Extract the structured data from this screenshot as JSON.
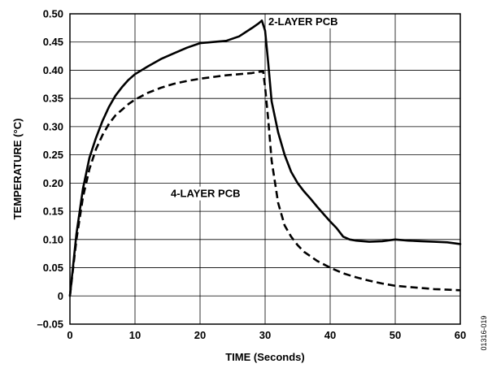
{
  "chart_data": {
    "type": "line",
    "title": "",
    "xlabel": "TIME (Seconds)",
    "ylabel": "TEMPERATURE (°C)",
    "xlim": [
      0,
      60
    ],
    "ylim": [
      -0.05,
      0.5
    ],
    "grid": true,
    "x_ticks": [
      "0",
      "10",
      "20",
      "30",
      "40",
      "50",
      "60"
    ],
    "y_ticks": [
      "–0.05",
      "0",
      "0.05",
      "0.10",
      "0.15",
      "0.20",
      "0.25",
      "0.30",
      "0.35",
      "0.40",
      "0.45",
      "0.50"
    ],
    "series": [
      {
        "name": "2-LAYER PCB",
        "style": "solid",
        "color": "#000000",
        "x": [
          0,
          1,
          2,
          3,
          4,
          5,
          6,
          7,
          8,
          9,
          10,
          12,
          14,
          16,
          18,
          20,
          22,
          24,
          26,
          28,
          29,
          29.5,
          30,
          30.5,
          31,
          32,
          33,
          34,
          35,
          36,
          37,
          38,
          39,
          40,
          41,
          42,
          43,
          44,
          46,
          48,
          50,
          52,
          54,
          56,
          58,
          60
        ],
        "values": [
          0,
          0.11,
          0.19,
          0.245,
          0.28,
          0.31,
          0.335,
          0.355,
          0.37,
          0.383,
          0.393,
          0.407,
          0.42,
          0.43,
          0.44,
          0.448,
          0.45,
          0.452,
          0.46,
          0.475,
          0.483,
          0.488,
          0.47,
          0.41,
          0.345,
          0.29,
          0.25,
          0.22,
          0.2,
          0.185,
          0.172,
          0.158,
          0.145,
          0.132,
          0.12,
          0.105,
          0.1,
          0.098,
          0.096,
          0.097,
          0.1,
          0.098,
          0.097,
          0.096,
          0.095,
          0.092
        ]
      },
      {
        "name": "4-LAYER PCB",
        "style": "dashed",
        "color": "#000000",
        "x": [
          0,
          1,
          2,
          3,
          4,
          5,
          6,
          7,
          8,
          9,
          10,
          12,
          14,
          16,
          18,
          20,
          22,
          24,
          26,
          28,
          29,
          29.7,
          30,
          30.5,
          31,
          32,
          33,
          34,
          35,
          36,
          38,
          40,
          42,
          44,
          46,
          48,
          50,
          52,
          54,
          56,
          58,
          60
        ],
        "values": [
          0,
          0.1,
          0.175,
          0.225,
          0.26,
          0.285,
          0.305,
          0.32,
          0.33,
          0.34,
          0.348,
          0.36,
          0.369,
          0.376,
          0.381,
          0.385,
          0.388,
          0.391,
          0.393,
          0.395,
          0.397,
          0.398,
          0.37,
          0.31,
          0.24,
          0.165,
          0.125,
          0.105,
          0.09,
          0.078,
          0.062,
          0.05,
          0.04,
          0.033,
          0.027,
          0.022,
          0.018,
          0.016,
          0.014,
          0.012,
          0.011,
          0.01
        ]
      }
    ],
    "annotations": [
      {
        "text": "2-LAYER PCB",
        "x": 30.5,
        "y": 0.48
      },
      {
        "text": "4-LAYER PCB",
        "x": 15.5,
        "y": 0.175
      }
    ],
    "figure_id": "01316-019"
  }
}
